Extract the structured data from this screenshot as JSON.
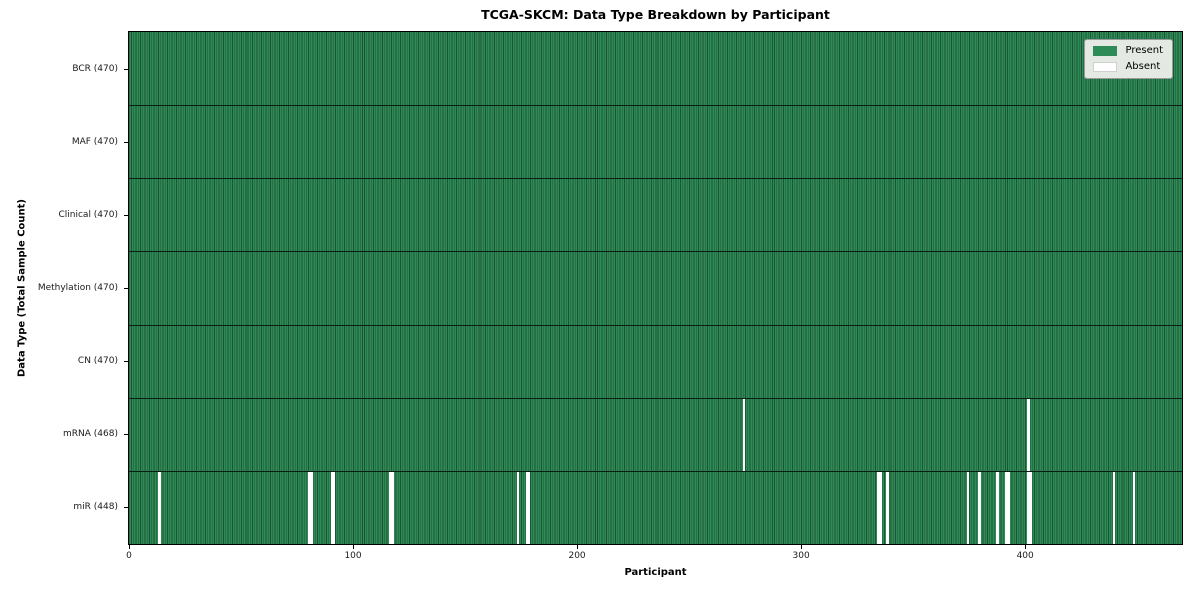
{
  "chart_data": {
    "type": "heatmap",
    "title": "TCGA-SKCM: Data Type Breakdown by Participant",
    "xlabel": "Participant",
    "ylabel": "Data Type (Total Sample Count)",
    "n_participants": 470,
    "x_axis": {
      "min": 0,
      "max": 470,
      "ticks": [
        0,
        100,
        200,
        300,
        400
      ]
    },
    "colors": {
      "present": "#2e8b57",
      "cell_edge": "#1d5434",
      "absent": "#ffffff",
      "grid": "#0a1f12"
    },
    "legend": [
      {
        "label": "Present",
        "color": "#2e8b57"
      },
      {
        "label": "Absent",
        "color": "#ffffff"
      }
    ],
    "legend_position": "upper right",
    "rows": [
      {
        "data_type": "BCR",
        "label": "BCR (470)",
        "total_samples": 470,
        "absent_participants": []
      },
      {
        "data_type": "MAF",
        "label": "MAF (470)",
        "total_samples": 470,
        "absent_participants": []
      },
      {
        "data_type": "Clinical",
        "label": "Clinical (470)",
        "total_samples": 470,
        "absent_participants": []
      },
      {
        "data_type": "Methylation",
        "label": "Methylation (470)",
        "total_samples": 470,
        "absent_participants": []
      },
      {
        "data_type": "CN",
        "label": "CN (470)",
        "total_samples": 470,
        "absent_participants": []
      },
      {
        "data_type": "mRNA",
        "label": "mRNA (468)",
        "total_samples": 468,
        "absent_participants": [
          274,
          401
        ]
      },
      {
        "data_type": "miR",
        "label": "miR (448)",
        "total_samples": 448,
        "absent_participants": [
          13,
          80,
          81,
          90,
          91,
          116,
          117,
          173,
          177,
          178,
          334,
          335,
          338,
          374,
          379,
          387,
          391,
          392,
          401,
          402,
          439,
          448
        ]
      }
    ]
  }
}
